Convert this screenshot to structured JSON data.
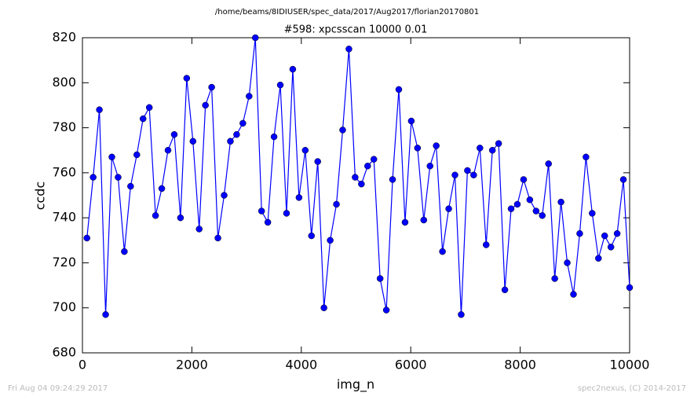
{
  "chart_data": {
    "type": "line",
    "suptitle": "/home/beams/8IDIUSER/spec_data/2017/Aug2017/florian20170801",
    "title": "#598: xpcsscan 10000 0.01",
    "xlabel": "img_n",
    "ylabel": "ccdc",
    "footer_left": "Fri Aug 04 09:24:29 2017",
    "footer_right": "spec2nexus, (C) 2014-2017",
    "xlim": [
      0,
      10000
    ],
    "ylim": [
      680,
      820
    ],
    "xticks": [
      0,
      2000,
      4000,
      6000,
      8000,
      10000
    ],
    "yticks": [
      680,
      700,
      720,
      740,
      760,
      780,
      800,
      820
    ],
    "color": "#0000ff",
    "x": [
      82,
      196,
      310,
      424,
      538,
      652,
      766,
      880,
      994,
      1108,
      1222,
      1336,
      1450,
      1564,
      1678,
      1792,
      1906,
      2020,
      2134,
      2248,
      2362,
      2476,
      2590,
      2704,
      2818,
      2932,
      3046,
      3160,
      3274,
      3388,
      3502,
      3616,
      3730,
      3844,
      3958,
      4072,
      4186,
      4300,
      4414,
      4528,
      4642,
      4756,
      4870,
      4984,
      5098,
      5212,
      5326,
      5440,
      5554,
      5668,
      5782,
      5896,
      6010,
      6124,
      6238,
      6352,
      6466,
      6580,
      6694,
      6808,
      6922,
      7036,
      7150,
      7264,
      7378,
      7492,
      7606,
      7720,
      7834,
      7948,
      8062,
      8176,
      8290,
      8404,
      8518,
      8632,
      8746,
      8860,
      8974,
      9088,
      9202,
      9316,
      9430,
      9544,
      9658,
      9772,
      9886,
      10000
    ],
    "values": [
      731,
      758,
      788,
      697,
      767,
      758,
      725,
      754,
      768,
      784,
      789,
      741,
      753,
      770,
      777,
      740,
      802,
      774,
      735,
      790,
      798,
      731,
      750,
      774,
      777,
      782,
      794,
      820,
      743,
      738,
      776,
      799,
      742,
      806,
      749,
      770,
      732,
      765,
      700,
      730,
      746,
      779,
      815,
      758,
      755,
      763,
      766,
      713,
      699,
      757,
      797,
      738,
      783,
      771,
      739,
      763,
      772,
      725,
      744,
      759,
      697,
      761,
      759,
      771,
      728,
      770,
      773,
      708,
      744,
      746,
      757,
      748,
      743,
      741,
      764,
      713,
      747,
      720,
      706,
      733,
      767,
      742,
      722,
      732,
      727,
      733,
      757,
      709
    ]
  }
}
